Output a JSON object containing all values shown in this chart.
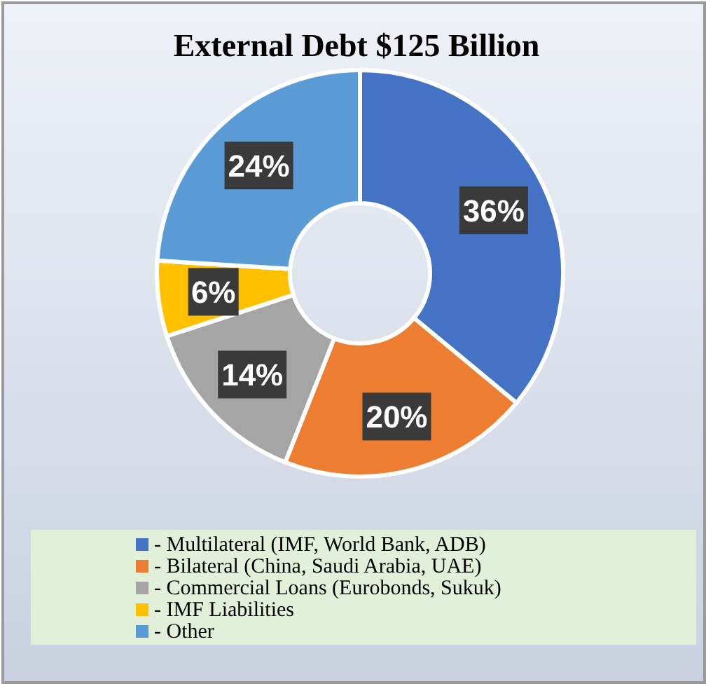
{
  "chart_data": {
    "type": "donut",
    "title": "External Debt $125 Billion",
    "categories": [
      "- Multilateral (IMF, World Bank, ADB)",
      "- Bilateral (China, Saudi Arabia, UAE)",
      "- Commercial Loans (Eurobonds, Sukuk)",
      "- IMF Liabilities",
      "- Other"
    ],
    "values": [
      36,
      20,
      14,
      6,
      24
    ],
    "colors": [
      "#4472c4",
      "#ed7d31",
      "#a5a5a5",
      "#ffc000",
      "#5b9bd5"
    ],
    "value_labels": [
      "36%",
      "20%",
      "14%",
      "6%",
      "24%"
    ],
    "legend": "bottom"
  }
}
